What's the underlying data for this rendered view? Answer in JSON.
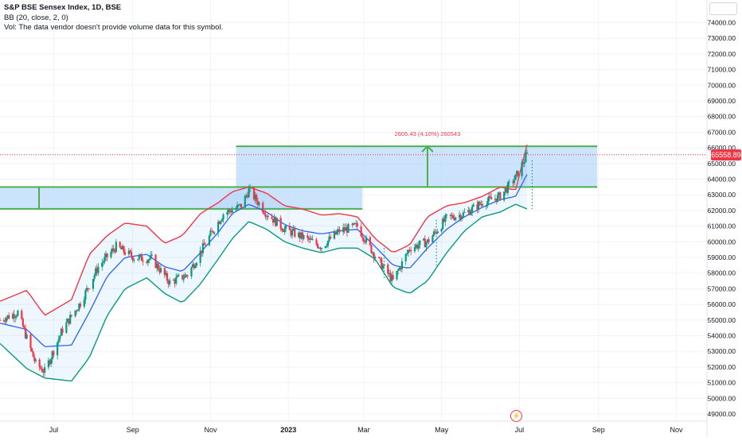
{
  "legend": {
    "symbol": "S&P BSE Sensex Index, 1D, BSE",
    "indicator": "BB (20, close, 2, 0)",
    "volume_note": "Vol: The data vendor doesn't provide volume data for this symbol."
  },
  "last_price_label": "65558.89",
  "measure_label": "2605.43 (4.10%) 260543",
  "colors": {
    "up": "#089981",
    "down": "#f23645",
    "upper_band": "#f23645",
    "basis": "#2962ff",
    "lower_band": "#089981",
    "band_fill": "#2196f3",
    "zone_fill": "#bbd9fb",
    "zone_border": "#4caf50",
    "measure_text": "#f23645"
  },
  "icons": {
    "top_box": "square-icon",
    "flash": "lightning-icon"
  },
  "chart_data": {
    "type": "candlestick",
    "title": "S&P BSE Sensex Index, 1D, BSE",
    "ylim": [
      48500,
      75500
    ],
    "yticks": [
      49000,
      50000,
      51000,
      52000,
      53000,
      54000,
      55000,
      56000,
      57000,
      58000,
      59000,
      60000,
      61000,
      62000,
      63000,
      64000,
      65000,
      66000,
      67000,
      68000,
      69000,
      70000,
      71000,
      72000,
      73000,
      74000
    ],
    "ytick_labels": [
      "49000.00",
      "50000.00",
      "51000.00",
      "52000.00",
      "53000.00",
      "54000.00",
      "55000.00",
      "56000.00",
      "57000.00",
      "58000.00",
      "59000.00",
      "60000.00",
      "61000.00",
      "62000.00",
      "63000.00",
      "64000.00",
      "65000.00",
      "66000.00",
      "67000.00",
      "68000.00",
      "69000.00",
      "70000.00",
      "71000.00",
      "72000.00",
      "73000.00",
      "74000.00"
    ],
    "xtick_labels": [
      "Jul",
      "Sep",
      "Nov",
      "2023",
      "Mar",
      "May",
      "Jul",
      "Sep",
      "Nov"
    ],
    "xtick_dates": [
      "2022-07-01",
      "2022-09-01",
      "2022-11-01",
      "2023-01-01",
      "2023-03-01",
      "2023-05-01",
      "2023-07-01",
      "2023-09-01",
      "2023-11-01"
    ],
    "xlim": [
      "2022-05-20",
      "2023-11-25"
    ],
    "grid": true,
    "last_price": 65558.89,
    "series": [
      {
        "name": "BB upper",
        "x": [
          "2022-05-20",
          "2022-06-10",
          "2022-06-24",
          "2022-07-15",
          "2022-07-29",
          "2022-08-12",
          "2022-08-26",
          "2022-09-12",
          "2022-09-26",
          "2022-10-10",
          "2022-10-24",
          "2022-11-07",
          "2022-11-18",
          "2022-12-01",
          "2022-12-15",
          "2022-12-29",
          "2023-01-12",
          "2023-01-27",
          "2023-02-10",
          "2023-02-24",
          "2023-03-10",
          "2023-03-24",
          "2023-04-06",
          "2023-04-20",
          "2023-05-05",
          "2023-05-19",
          "2023-06-02",
          "2023-06-16",
          "2023-06-28",
          "2023-07-07"
        ],
        "values": [
          56200,
          56900,
          55300,
          56300,
          59200,
          60400,
          61200,
          61000,
          59900,
          60400,
          61800,
          62500,
          63200,
          63500,
          63100,
          62300,
          62100,
          61700,
          61800,
          61600,
          60200,
          59300,
          59800,
          61600,
          62300,
          62500,
          62900,
          63500,
          63300,
          66200
        ]
      },
      {
        "name": "BB basis",
        "x": [
          "2022-05-20",
          "2022-06-10",
          "2022-06-24",
          "2022-07-15",
          "2022-07-29",
          "2022-08-12",
          "2022-08-26",
          "2022-09-12",
          "2022-09-26",
          "2022-10-10",
          "2022-10-24",
          "2022-11-07",
          "2022-11-18",
          "2022-12-01",
          "2022-12-15",
          "2022-12-29",
          "2023-01-12",
          "2023-01-27",
          "2023-02-10",
          "2023-02-24",
          "2023-03-10",
          "2023-03-24",
          "2023-04-06",
          "2023-04-20",
          "2023-05-05",
          "2023-05-19",
          "2023-06-02",
          "2023-06-16",
          "2023-06-28",
          "2023-07-07"
        ],
        "values": [
          54800,
          54400,
          53300,
          53400,
          55500,
          57800,
          59000,
          59200,
          58400,
          58100,
          59300,
          60600,
          61800,
          62400,
          61900,
          61100,
          60700,
          60500,
          60700,
          60800,
          59700,
          58500,
          58300,
          59600,
          60800,
          61600,
          62200,
          62700,
          62900,
          64300
        ]
      },
      {
        "name": "BB lower",
        "x": [
          "2022-05-20",
          "2022-06-10",
          "2022-06-24",
          "2022-07-15",
          "2022-07-29",
          "2022-08-12",
          "2022-08-26",
          "2022-09-12",
          "2022-09-26",
          "2022-10-10",
          "2022-10-24",
          "2022-11-07",
          "2022-11-18",
          "2022-12-01",
          "2022-12-15",
          "2022-12-29",
          "2023-01-12",
          "2023-01-27",
          "2023-02-10",
          "2023-02-24",
          "2023-03-10",
          "2023-03-24",
          "2023-04-06",
          "2023-04-20",
          "2023-05-05",
          "2023-05-19",
          "2023-06-02",
          "2023-06-16",
          "2023-06-28",
          "2023-07-07"
        ],
        "values": [
          53500,
          51900,
          51300,
          51100,
          52600,
          55300,
          57000,
          57700,
          56700,
          56100,
          57300,
          58900,
          60200,
          61300,
          60800,
          60000,
          59600,
          59300,
          59600,
          59600,
          58900,
          57100,
          56700,
          57500,
          59300,
          60700,
          61600,
          61900,
          62400,
          62100
        ]
      },
      {
        "name": "close",
        "x": [
          "2022-05-20",
          "2022-06-03",
          "2022-06-17",
          "2022-06-24",
          "2022-07-08",
          "2022-07-22",
          "2022-08-05",
          "2022-08-19",
          "2022-09-02",
          "2022-09-16",
          "2022-09-30",
          "2022-10-14",
          "2022-10-28",
          "2022-11-11",
          "2022-11-25",
          "2022-12-01",
          "2022-12-15",
          "2022-12-29",
          "2023-01-12",
          "2023-01-27",
          "2023-02-10",
          "2023-02-24",
          "2023-03-10",
          "2023-03-24",
          "2023-04-06",
          "2023-04-20",
          "2023-05-05",
          "2023-05-19",
          "2023-06-02",
          "2023-06-16",
          "2023-06-28",
          "2023-07-07"
        ],
        "values": [
          55000,
          55500,
          52200,
          51700,
          54400,
          56100,
          58400,
          59700,
          59000,
          58900,
          57400,
          57900,
          59900,
          61800,
          62300,
          63300,
          61800,
          60800,
          60300,
          59700,
          60700,
          61000,
          59100,
          57500,
          59600,
          60000,
          61500,
          61800,
          62500,
          62900,
          64100,
          65560
        ]
      }
    ],
    "zones": [
      {
        "from": "2022-05-20",
        "to": "2023-02-28",
        "low": 62100,
        "high": 63500
      },
      {
        "from": "2022-11-21",
        "to": "2023-08-31",
        "low": 63500,
        "high": 66100
      }
    ],
    "measure": {
      "date": "2023-04-20",
      "from": 63500,
      "to": 66100,
      "label": "2605.43 (4.10%) 260543"
    }
  }
}
